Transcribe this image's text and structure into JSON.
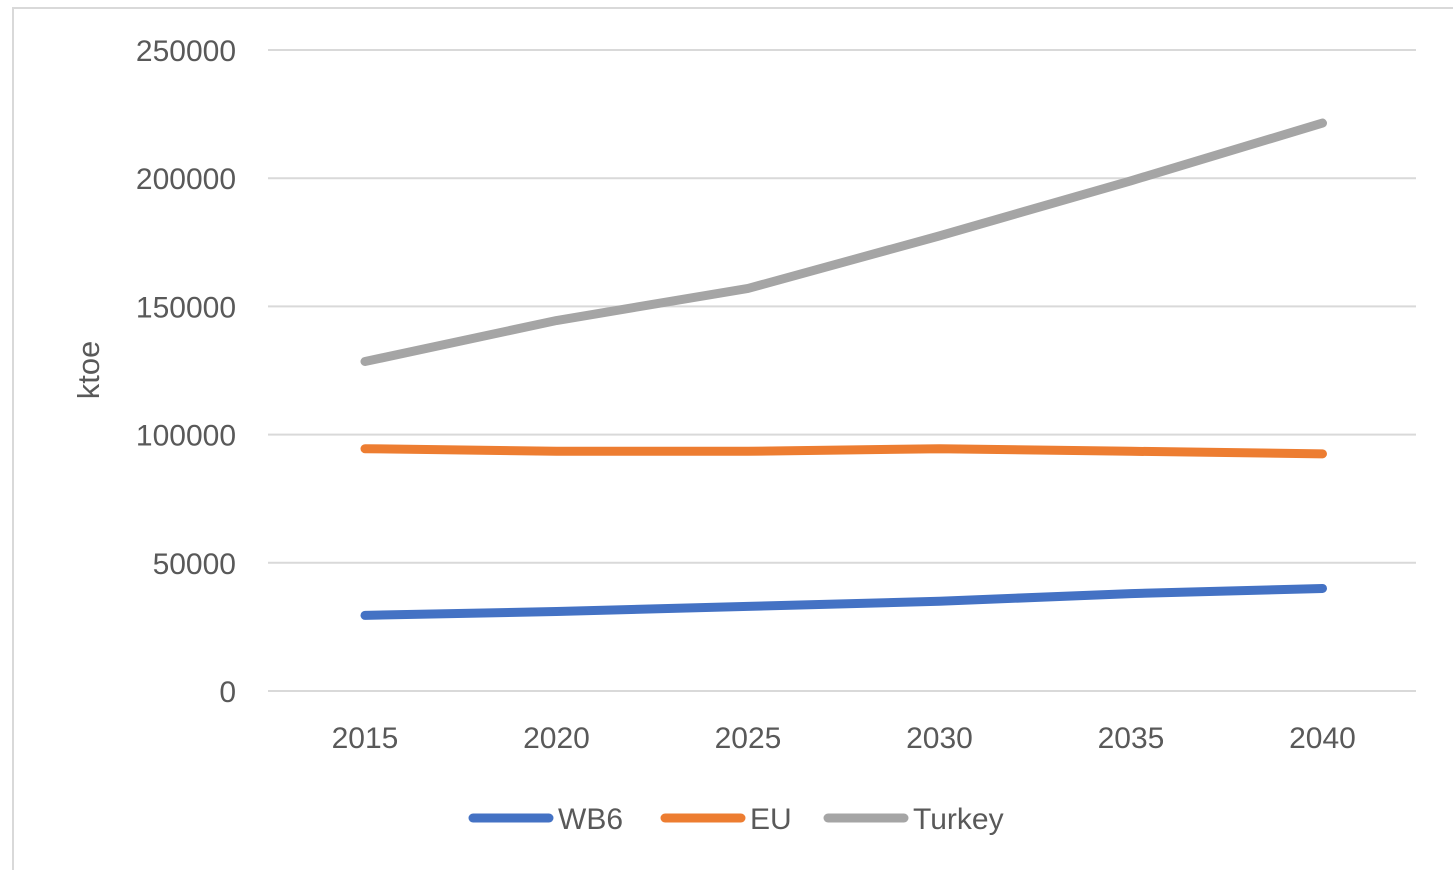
{
  "chart_data": {
    "type": "line",
    "title": "",
    "xlabel": "",
    "ylabel": "ktoe",
    "x": [
      "2015",
      "2020",
      "2025",
      "2030",
      "2035",
      "2040"
    ],
    "ylim": [
      0,
      250000
    ],
    "yticks": [
      "0",
      "50000",
      "100000",
      "150000",
      "200000",
      "250000"
    ],
    "grid": "horizontal",
    "legend_position": "bottom",
    "series": [
      {
        "name": "WB6",
        "color": "#4472C4",
        "values": [
          29500,
          31000,
          33000,
          35000,
          38000,
          40000
        ]
      },
      {
        "name": "EU",
        "color": "#ED7D31",
        "values": [
          94500,
          93500,
          93500,
          94500,
          93500,
          92500
        ]
      },
      {
        "name": "Turkey",
        "color": "#A5A5A5",
        "values": [
          128500,
          144500,
          157000,
          177500,
          199000,
          221500
        ]
      }
    ]
  }
}
